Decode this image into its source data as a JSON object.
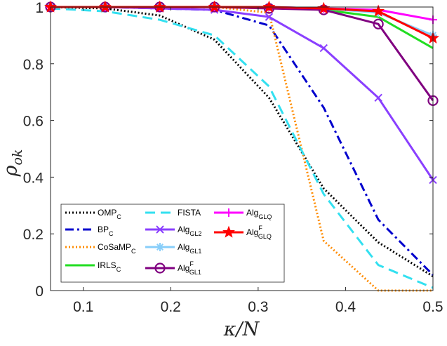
{
  "chart_data": {
    "type": "line",
    "title": "",
    "xlabel": "κ/N",
    "ylabel": "ρ_ok",
    "xlim": [
      0.0625,
      0.5
    ],
    "ylim": [
      0,
      1
    ],
    "x": [
      0.0625,
      0.125,
      0.1875,
      0.25,
      0.3125,
      0.375,
      0.4375,
      0.5
    ],
    "xticks": [
      "0.1",
      "0.2",
      "0.3",
      "0.4",
      "0.5"
    ],
    "xtick_values": [
      0.1,
      0.2,
      0.3,
      0.4,
      0.5
    ],
    "yticks": [
      "0",
      "0.2",
      "0.4",
      "0.6",
      "0.8",
      "1"
    ],
    "ytick_values": [
      0,
      0.2,
      0.4,
      0.6,
      0.8,
      1.0
    ],
    "grid": false,
    "legend_position": "bottom-left",
    "series": [
      {
        "name": "OMP",
        "sub": "C",
        "sup": "",
        "color": "#000000",
        "dash": "2,3",
        "width": 3,
        "marker": "none",
        "values": [
          1.0,
          0.995,
          0.97,
          0.885,
          0.68,
          0.36,
          0.17,
          0.05
        ]
      },
      {
        "name": "BP",
        "sub": "C",
        "sup": "",
        "color": "#0000cd",
        "dash": "12,5,3,5",
        "width": 3,
        "marker": "none",
        "values": [
          1.0,
          1.0,
          0.995,
          0.99,
          0.935,
          0.645,
          0.25,
          0.055
        ]
      },
      {
        "name": "CoSaMP",
        "sub": "C",
        "sup": "",
        "color": "#ff8c00",
        "dash": "2,3",
        "width": 3,
        "marker": "none",
        "values": [
          1.0,
          1.0,
          1.0,
          1.0,
          0.98,
          0.175,
          0.0,
          0.0
        ]
      },
      {
        "name": "IRLS",
        "sub": "C",
        "sup": "",
        "color": "#22dd22",
        "dash": "",
        "width": 3,
        "marker": "none",
        "values": [
          1.0,
          1.0,
          1.0,
          1.0,
          1.0,
          0.99,
          0.965,
          0.855
        ]
      },
      {
        "name": "FISTA",
        "sub": "",
        "sup": "",
        "color": "#33e0f0",
        "dash": "14,8",
        "width": 3,
        "marker": "none",
        "values": [
          0.995,
          0.985,
          0.955,
          0.9,
          0.72,
          0.34,
          0.09,
          0.01
        ]
      },
      {
        "name": "Alg",
        "sub": "GL2",
        "sup": "",
        "color": "#8a3fff",
        "dash": "",
        "width": 3,
        "marker": "x",
        "values": [
          1.0,
          1.0,
          0.995,
          0.99,
          0.965,
          0.855,
          0.68,
          0.39
        ]
      },
      {
        "name": "Alg",
        "sub": "GL1",
        "sup": "",
        "color": "#87cefa",
        "dash": "",
        "width": 3,
        "marker": "asterisk",
        "values": [
          1.0,
          1.0,
          1.0,
          1.0,
          1.0,
          0.995,
          0.98,
          0.9
        ]
      },
      {
        "name": "Alg",
        "sub": "GL1",
        "sup": "F",
        "color": "#800080",
        "dash": "",
        "width": 3,
        "marker": "circle",
        "values": [
          1.0,
          1.0,
          1.0,
          1.0,
          0.995,
          0.99,
          0.94,
          0.67
        ]
      },
      {
        "name": "Alg",
        "sub": "GLQ",
        "sup": "",
        "color": "#ff00ff",
        "dash": "",
        "width": 3,
        "marker": "plus",
        "values": [
          1.0,
          1.0,
          1.0,
          1.0,
          1.0,
          0.995,
          0.99,
          0.955
        ]
      },
      {
        "name": "Alg",
        "sub": "GLQ",
        "sup": "F",
        "color": "#ff0000",
        "dash": "",
        "width": 3,
        "marker": "star",
        "values": [
          1.0,
          1.0,
          1.0,
          1.0,
          1.0,
          0.995,
          0.985,
          0.89
        ]
      }
    ]
  }
}
